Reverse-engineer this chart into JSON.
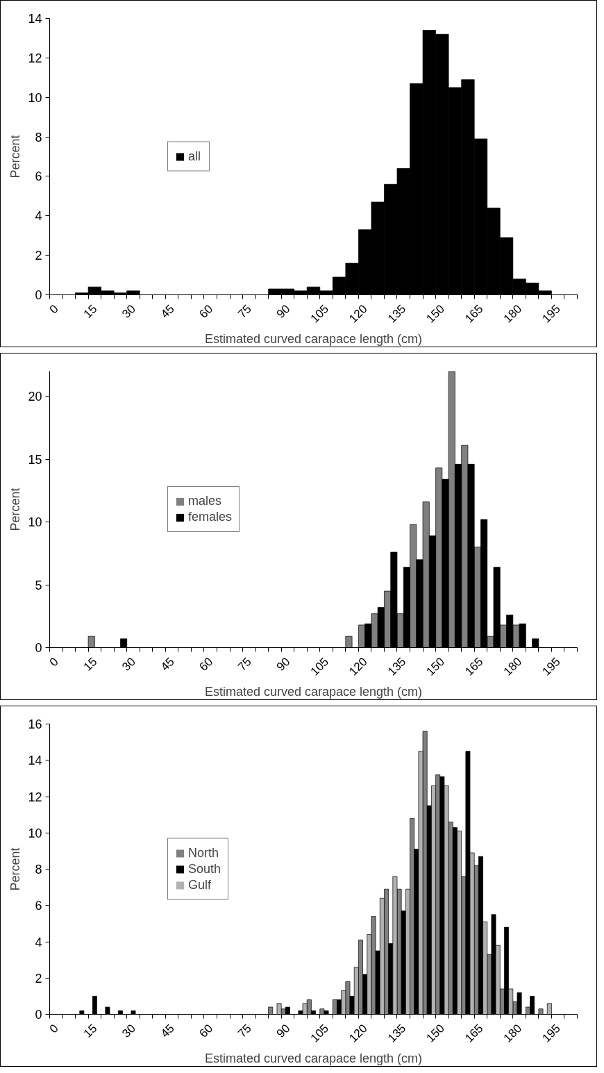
{
  "chart_data": [
    {
      "type": "bar",
      "xlabel": "Estimated curved carapace length (cm)",
      "ylabel": "Percent",
      "categories": [
        "0",
        null,
        null,
        "15",
        null,
        null,
        "30",
        null,
        null,
        "45",
        null,
        null,
        "60",
        null,
        null,
        "75",
        null,
        null,
        "90",
        null,
        null,
        "105",
        null,
        null,
        "120",
        null,
        null,
        "135",
        null,
        null,
        "150",
        null,
        null,
        "165",
        null,
        null,
        "180",
        null,
        null,
        "195",
        null
      ],
      "series": [
        {
          "name": "all",
          "color": "#000000",
          "values": [
            0,
            0,
            0.1,
            0.4,
            0.2,
            0.1,
            0.2,
            0,
            0,
            0,
            0,
            0,
            0,
            0,
            0,
            0,
            0,
            0.3,
            0.3,
            0.2,
            0.4,
            0.2,
            0.9,
            1.6,
            3.3,
            4.7,
            5.6,
            6.4,
            10.7,
            13.4,
            13.2,
            10.5,
            10.9,
            7.9,
            4.4,
            2.9,
            0.8,
            0.6,
            0.2,
            0,
            0
          ]
        }
      ],
      "ylim": [
        0,
        14
      ],
      "yticks": [
        0,
        2,
        4,
        6,
        8,
        10,
        12,
        14
      ],
      "legend": "left"
    },
    {
      "type": "bar",
      "xlabel": "Estimated curved carapace length (cm)",
      "ylabel": "Percent",
      "categories": [
        "0",
        null,
        null,
        "15",
        null,
        null,
        "30",
        null,
        null,
        "45",
        null,
        null,
        "60",
        null,
        null,
        "75",
        null,
        null,
        "90",
        null,
        null,
        "105",
        null,
        null,
        "120",
        null,
        null,
        "135",
        null,
        null,
        "150",
        null,
        null,
        "165",
        null,
        null,
        "180",
        null,
        null,
        "195",
        null
      ],
      "series": [
        {
          "name": "males",
          "color": "#808080",
          "values": [
            0,
            0,
            0,
            0.9,
            0,
            0,
            0,
            0,
            0,
            0,
            0,
            0,
            0,
            0,
            0,
            0,
            0,
            0,
            0,
            0,
            0,
            0,
            0,
            0.9,
            1.8,
            2.7,
            4.5,
            2.7,
            9.8,
            11.6,
            14.3,
            22,
            16.1,
            8.0,
            0.9,
            1.8,
            1.8,
            0,
            0,
            0,
            0
          ]
        },
        {
          "name": "females",
          "color": "#000000",
          "values": [
            0,
            0,
            0,
            0,
            0,
            0.7,
            0,
            0,
            0,
            0,
            0,
            0,
            0,
            0,
            0,
            0,
            0,
            0,
            0,
            0,
            0,
            0,
            0,
            0,
            1.9,
            3.2,
            7.6,
            6.4,
            7.0,
            8.9,
            13.4,
            14.6,
            14.6,
            10.2,
            6.4,
            2.6,
            1.9,
            0.7,
            0,
            0,
            0
          ]
        }
      ],
      "ylim": [
        0,
        22
      ],
      "yticks": [
        0,
        5,
        10,
        15,
        20
      ],
      "legend": "left"
    },
    {
      "type": "bar",
      "xlabel": "Estimated curved carapace length (cm)",
      "ylabel": "Percent",
      "categories": [
        "0",
        null,
        null,
        "15",
        null,
        null,
        "30",
        null,
        null,
        "45",
        null,
        null,
        "60",
        null,
        null,
        "75",
        null,
        null,
        "90",
        null,
        null,
        "105",
        null,
        null,
        "120",
        null,
        null,
        "135",
        null,
        null,
        "150",
        null,
        null,
        "165",
        null,
        null,
        "180",
        null,
        null,
        "195",
        null
      ],
      "series": [
        {
          "name": "North",
          "color": "#808080",
          "values": [
            0,
            0,
            0,
            0,
            0,
            0,
            0,
            0,
            0,
            0,
            0,
            0,
            0,
            0,
            0,
            0,
            0,
            0.4,
            0.3,
            0,
            0.8,
            0.3,
            0.8,
            1.8,
            4.1,
            5.4,
            6.9,
            6.9,
            10.8,
            15.6,
            13.2,
            10.6,
            7.6,
            8.2,
            3.3,
            1.4,
            0.7,
            0.4,
            0.3,
            0,
            0
          ]
        },
        {
          "name": "South",
          "color": "#000000",
          "values": [
            0,
            0,
            0.2,
            1.0,
            0.4,
            0.2,
            0.2,
            0,
            0,
            0,
            0,
            0,
            0,
            0,
            0,
            0,
            0,
            0,
            0.4,
            0.2,
            0.2,
            0.2,
            0.8,
            1.0,
            2.2,
            3.5,
            3.9,
            5.7,
            9.1,
            11.5,
            13.1,
            10.3,
            14.5,
            8.7,
            5.5,
            4.8,
            1.2,
            1.0,
            0,
            0,
            0
          ]
        },
        {
          "name": "Gulf",
          "color": "#b2b2b2",
          "values": [
            0,
            0,
            0,
            0,
            0,
            0,
            0,
            0,
            0,
            0,
            0,
            0,
            0,
            0,
            0,
            0,
            0,
            0.6,
            0,
            0.6,
            0,
            0,
            1.3,
            2.6,
            4.4,
            6.4,
            7.6,
            6.9,
            14.5,
            12.6,
            12.6,
            10.1,
            8.9,
            5.1,
            3.8,
            1.4,
            0,
            0,
            0.6,
            0,
            0
          ]
        }
      ],
      "ylim": [
        0,
        16
      ],
      "yticks": [
        0,
        2,
        4,
        6,
        8,
        10,
        12,
        14,
        16
      ],
      "legend": "left"
    }
  ]
}
